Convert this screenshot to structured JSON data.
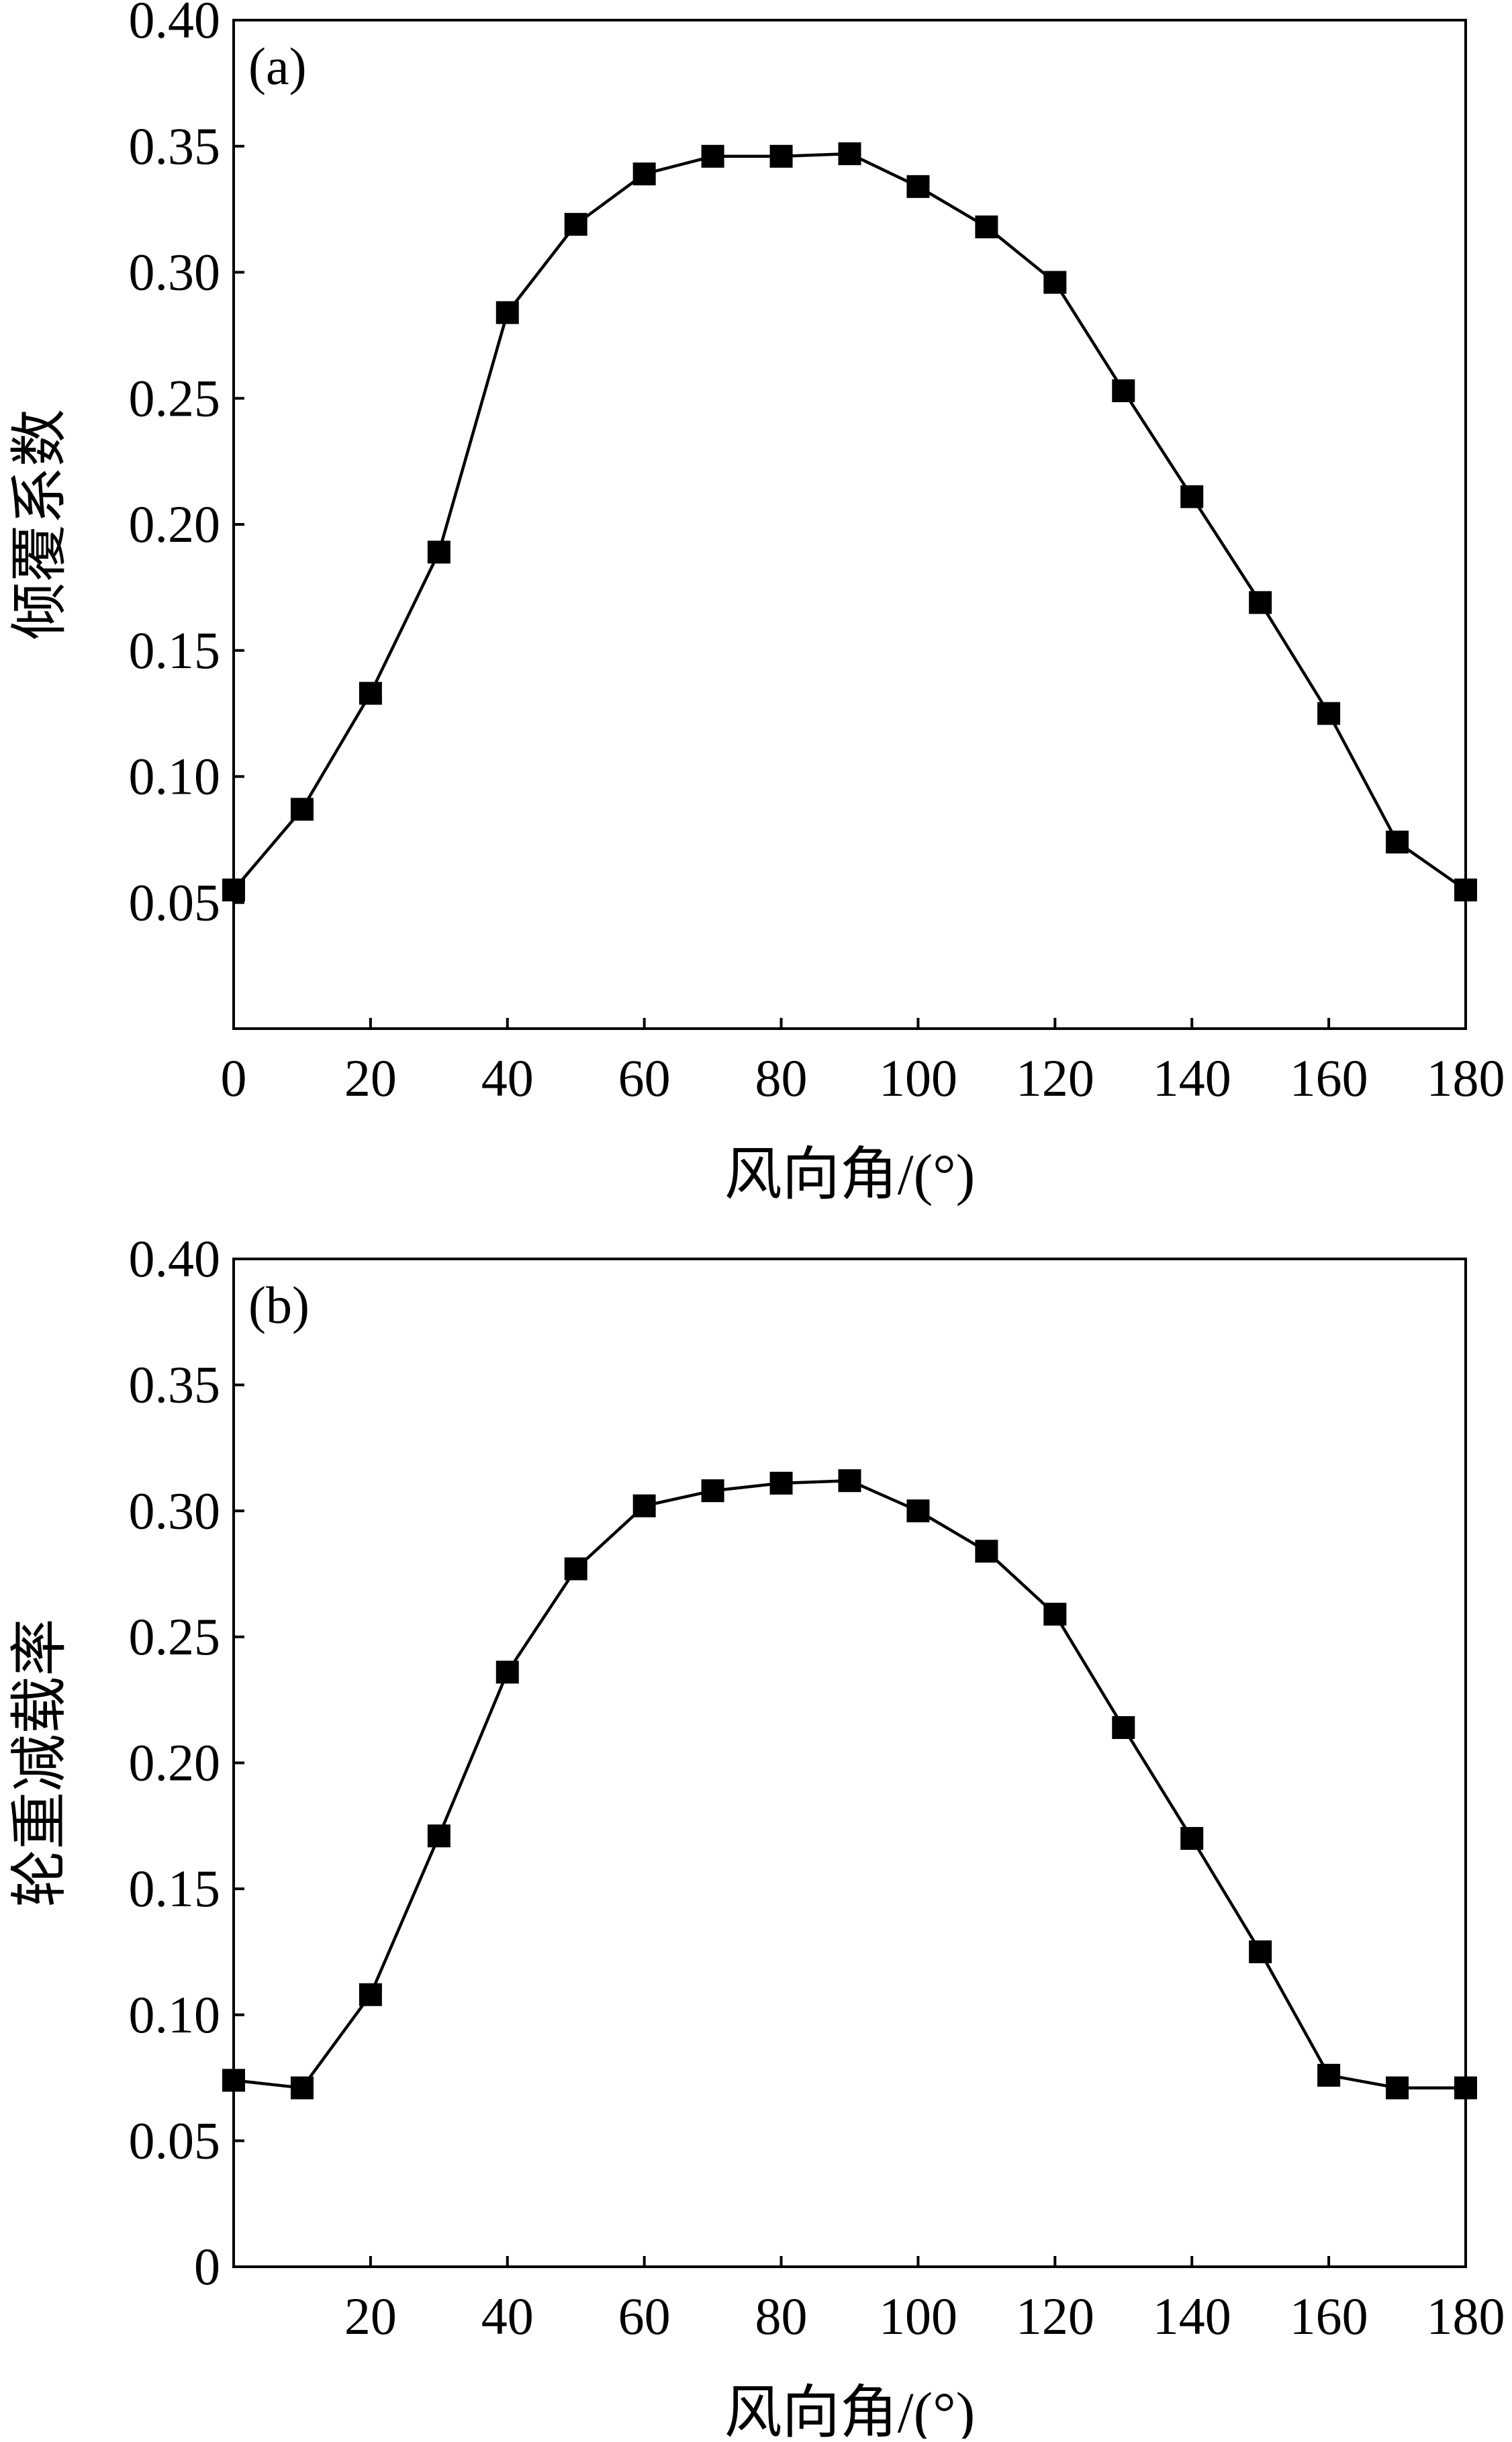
{
  "colors": {
    "line": "#000000",
    "marker": "#000000",
    "background": "#ffffff"
  },
  "chart_data": [
    {
      "type": "line",
      "panel_label": "(a)",
      "xlabel": "风向角/(°)",
      "ylabel": "倾覆系数",
      "xlim": [
        0,
        180
      ],
      "ylim": [
        0.0,
        0.4
      ],
      "xticks": [
        "0",
        "20",
        "40",
        "60",
        "80",
        "100",
        "120",
        "140",
        "160",
        "180"
      ],
      "yticks": [
        "0.05",
        "0.10",
        "0.15",
        "0.20",
        "0.25",
        "0.30",
        "0.35",
        "0.40"
      ],
      "grid": false,
      "marker": "square",
      "series": [
        {
          "x": [
            0,
            10,
            20,
            30,
            40,
            50,
            60,
            70,
            80,
            90,
            100,
            110,
            120,
            130,
            140,
            150,
            160,
            170,
            180
          ],
          "values": [
            0.055,
            0.087,
            0.133,
            0.189,
            0.284,
            0.319,
            0.339,
            0.346,
            0.346,
            0.347,
            0.334,
            0.318,
            0.296,
            0.253,
            0.211,
            0.169,
            0.125,
            0.074,
            0.055
          ]
        }
      ]
    },
    {
      "type": "line",
      "panel_label": "(b)",
      "xlabel": "风向角/(°)",
      "ylabel": "轮重减载率",
      "xlim": [
        0,
        180
      ],
      "ylim": [
        0,
        0.4
      ],
      "xticks": [
        "20",
        "40",
        "60",
        "80",
        "100",
        "120",
        "140",
        "160",
        "180"
      ],
      "yticks": [
        "0",
        "0.05",
        "0.10",
        "0.15",
        "0.20",
        "0.25",
        "0.30",
        "0.35",
        "0.40"
      ],
      "grid": false,
      "marker": "square",
      "series": [
        {
          "x": [
            0,
            10,
            20,
            30,
            40,
            50,
            60,
            70,
            80,
            90,
            100,
            110,
            120,
            130,
            140,
            150,
            160,
            170,
            180
          ],
          "values": [
            0.074,
            0.071,
            0.108,
            0.171,
            0.236,
            0.277,
            0.302,
            0.308,
            0.311,
            0.312,
            0.3,
            0.284,
            0.259,
            0.214,
            0.17,
            0.125,
            0.076,
            0.071,
            0.071
          ]
        }
      ]
    }
  ]
}
